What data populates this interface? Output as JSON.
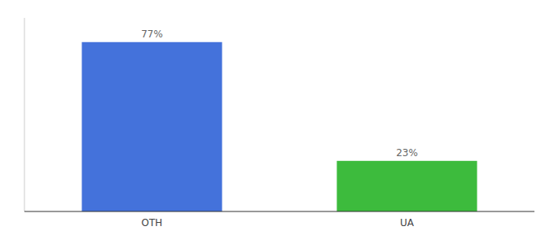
{
  "chart_data": {
    "type": "bar",
    "categories": [
      "OTH",
      "UA"
    ],
    "values": [
      77,
      23
    ],
    "value_labels": [
      "77%",
      "23%"
    ],
    "colors": [
      "#4472db",
      "#3dbb3d"
    ],
    "ylim": [
      0,
      88
    ],
    "data_labels": true,
    "tick_labels": "x",
    "grid": false
  }
}
